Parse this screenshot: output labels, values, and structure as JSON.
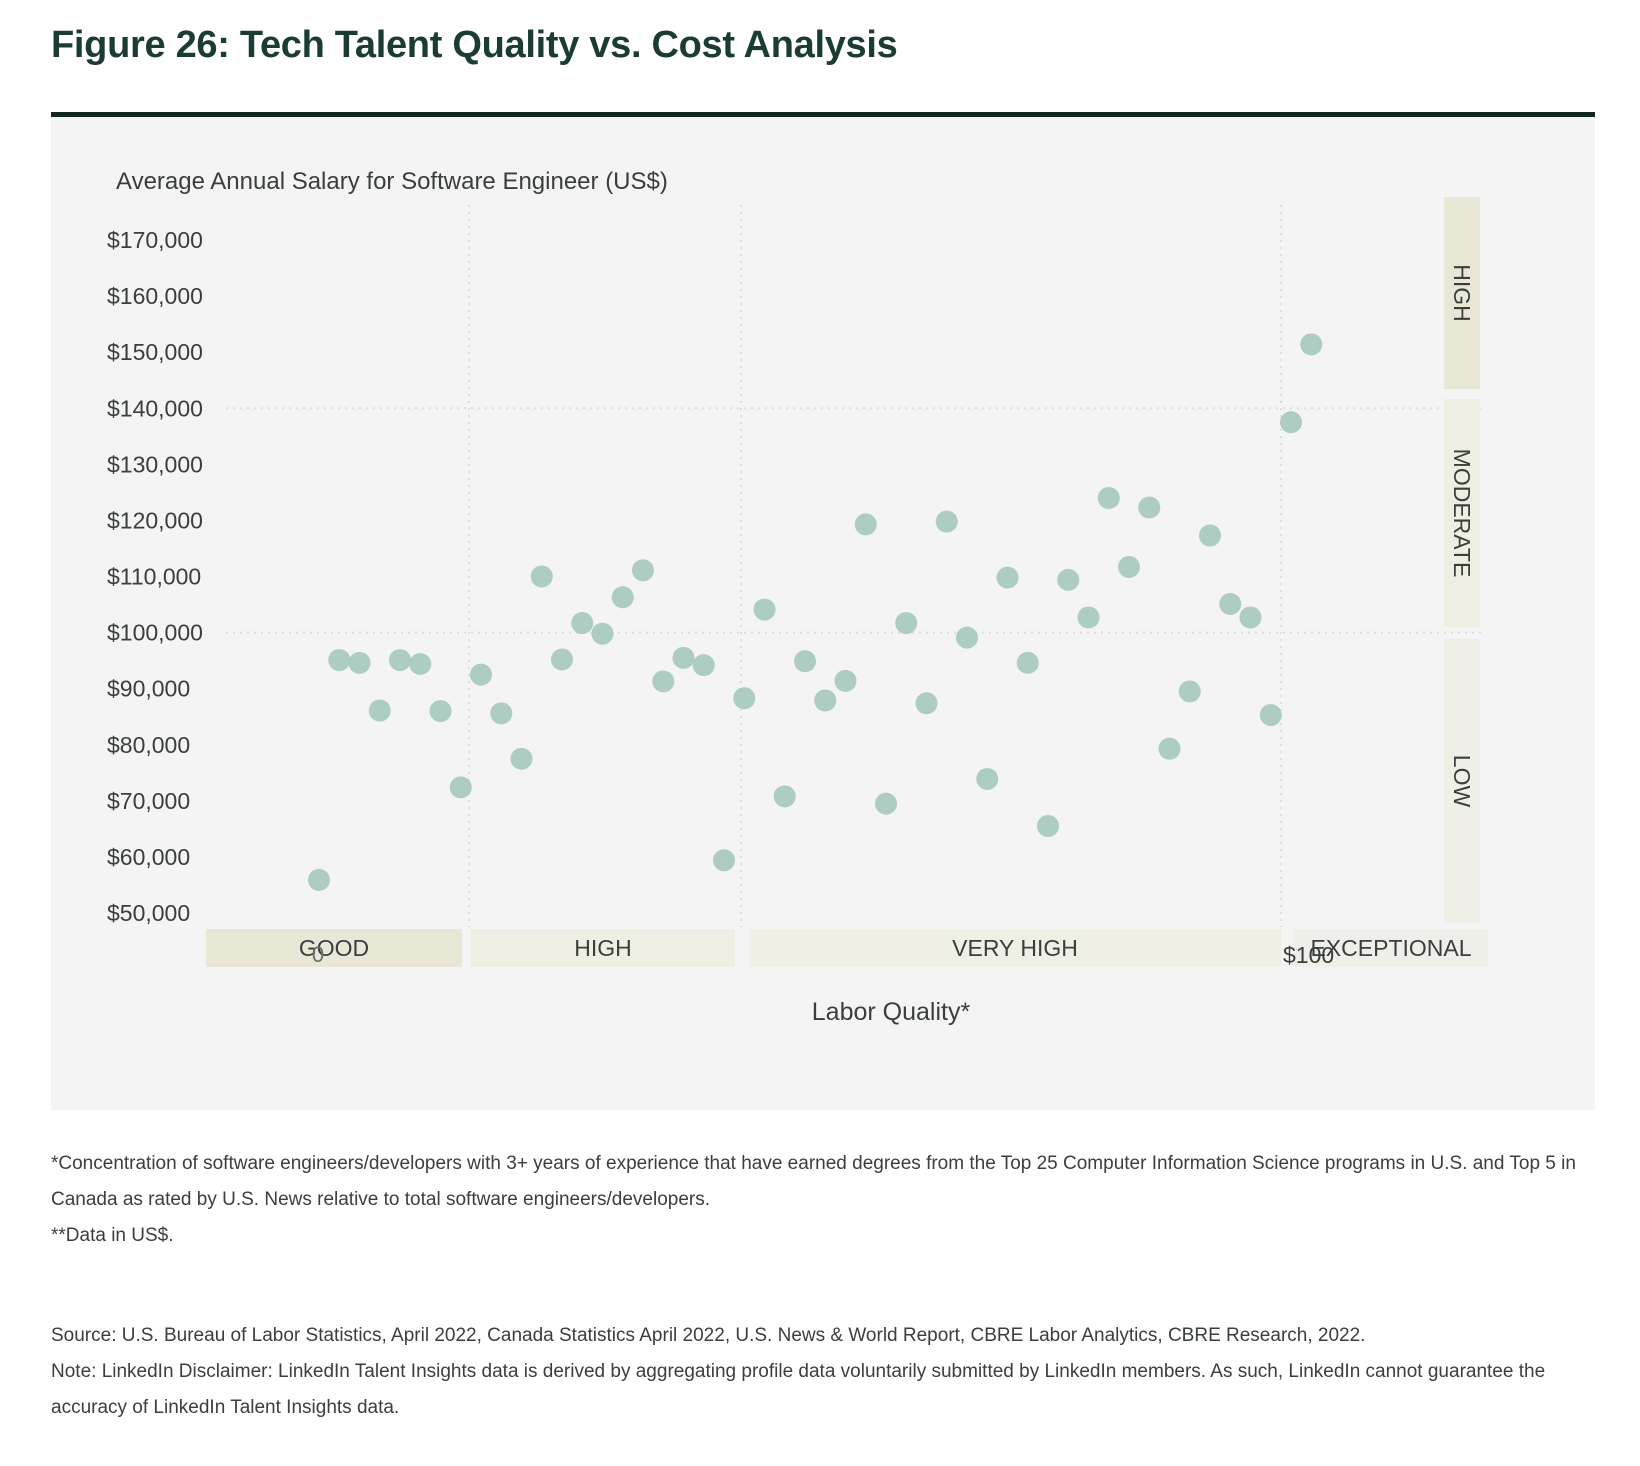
{
  "title": "Figure 26: Tech Talent Quality vs. Cost Analysis",
  "chart_data": {
    "type": "scatter",
    "ylabel": "Average Annual Salary for Software Engineer (US$)",
    "xlabel": "Labor Quality*",
    "ylim": [
      50000,
      170000
    ],
    "y_ticks": [
      "$170,000",
      "$160,000",
      "$150,000",
      "$140,000",
      "$130,000",
      "$120,000",
      "$110,000",
      "$100,000",
      "$90,000",
      "$80,000",
      "$70,000",
      "$60,000",
      "$50,000"
    ],
    "y_tick_values": [
      170000,
      160000,
      150000,
      140000,
      130000,
      120000,
      110000,
      100000,
      90000,
      80000,
      70000,
      60000,
      50000
    ],
    "x_tick_labels": [
      "0",
      "$100"
    ],
    "quality_bands": [
      "GOOD",
      "HIGH",
      "VERY HIGH",
      "EXCEPTIONAL"
    ],
    "cost_bands": [
      "HIGH",
      "MODERATE",
      "LOW"
    ],
    "cost_thresholds": [
      100000,
      140000
    ],
    "grid": true,
    "point_color": "#a7c8be",
    "series": [
      {
        "points": [
          [
            0.5,
            55900
          ],
          [
            1.5,
            95100
          ],
          [
            2.5,
            94600
          ],
          [
            3.5,
            86100
          ],
          [
            4.5,
            95100
          ],
          [
            5.5,
            94400
          ],
          [
            6.5,
            86000
          ],
          [
            7.5,
            72400
          ],
          [
            8.5,
            92500
          ],
          [
            9.5,
            85600
          ],
          [
            10.5,
            77500
          ],
          [
            11.5,
            110000
          ],
          [
            12.5,
            95200
          ],
          [
            13.5,
            101700
          ],
          [
            14.5,
            99800
          ],
          [
            15.5,
            106300
          ],
          [
            16.5,
            111100
          ],
          [
            17.5,
            91300
          ],
          [
            18.5,
            95500
          ],
          [
            19.5,
            94200
          ],
          [
            20.5,
            59400
          ],
          [
            21.5,
            88300
          ],
          [
            22.5,
            104100
          ],
          [
            23.5,
            70800
          ],
          [
            24.5,
            94900
          ],
          [
            25.5,
            87900
          ],
          [
            26.5,
            91400
          ],
          [
            27.5,
            119300
          ],
          [
            28.5,
            69500
          ],
          [
            29.5,
            101700
          ],
          [
            30.5,
            87400
          ],
          [
            31.5,
            119800
          ],
          [
            32.5,
            99100
          ],
          [
            33.5,
            73900
          ],
          [
            34.5,
            109800
          ],
          [
            35.5,
            94600
          ],
          [
            36.5,
            65500
          ],
          [
            37.5,
            109400
          ],
          [
            38.5,
            102700
          ],
          [
            39.5,
            124000
          ],
          [
            40.5,
            111700
          ],
          [
            41.5,
            122300
          ],
          [
            42.5,
            79300
          ],
          [
            43.5,
            89500
          ],
          [
            44.5,
            117300
          ],
          [
            45.5,
            105100
          ],
          [
            46.5,
            102700
          ],
          [
            47.5,
            85300
          ],
          [
            48.5,
            137500
          ],
          [
            49.5,
            151400
          ]
        ]
      }
    ]
  },
  "notes": [
    "*Concentration of software engineers/developers with 3+ years of experience that have earned degrees from the Top 25 Computer Information Science programs in U.S. and Top 5 in Canada as rated by U.S. News relative to total software engineers/developers.",
    "**Data in US$."
  ],
  "source": [
    "Source: U.S. Bureau of Labor Statistics, April 2022, Canada Statistics April 2022, U.S. News & World Report, CBRE Labor Analytics, CBRE Research, 2022.",
    "Note: LinkedIn Disclaimer: LinkedIn Talent Insights data is derived by aggregating profile data voluntarily submitted by LinkedIn members. As such, LinkedIn cannot guarantee the accuracy of LinkedIn Talent Insights data."
  ]
}
